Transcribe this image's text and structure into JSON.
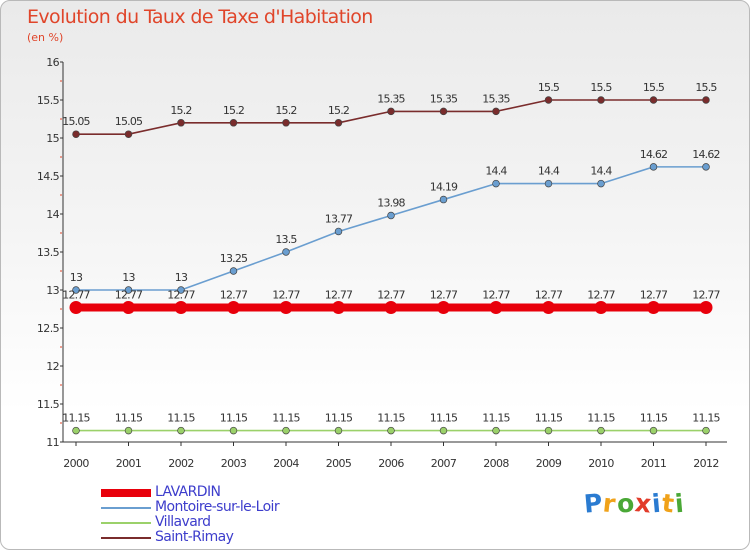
{
  "title": "Evolution du Taux de Taxe d'Habitation",
  "unit_label": "(en %)",
  "brand_logo": "Proxiti",
  "chart_data": {
    "type": "line",
    "title": "Evolution du Taux de Taxe d'Habitation",
    "ylabel": "(en %)",
    "xlabel": "",
    "x": [
      "2000",
      "2001",
      "2002",
      "2003",
      "2004",
      "2005",
      "2006",
      "2007",
      "2008",
      "2009",
      "2010",
      "2011",
      "2012"
    ],
    "ylim": [
      11,
      16
    ],
    "yticks": [
      "11",
      "11.5",
      "12",
      "12.5",
      "13",
      "13.5",
      "14",
      "14.5",
      "15",
      "15.5",
      "16"
    ],
    "grid": false,
    "legend_position": "bottom-left",
    "series": [
      {
        "name": "LAVARDIN",
        "color": "#e8000b",
        "values": [
          12.77,
          12.77,
          12.77,
          12.77,
          12.77,
          12.77,
          12.77,
          12.77,
          12.77,
          12.77,
          12.77,
          12.77,
          12.77
        ],
        "labels": [
          "12.77",
          "12.77",
          "12.77",
          "12.77",
          "12.77",
          "12.77",
          "12.77",
          "12.77",
          "12.77",
          "12.77",
          "12.77",
          "12.77",
          "12.77"
        ]
      },
      {
        "name": "Montoire-sur-le-Loir",
        "color": "#6a9ed0",
        "values": [
          13,
          13,
          13,
          13.25,
          13.5,
          13.77,
          13.98,
          14.19,
          14.4,
          14.4,
          14.4,
          14.62,
          14.62
        ],
        "labels": [
          "13",
          "13",
          "13",
          "13.25",
          "13.5",
          "13.77",
          "13.98",
          "14.19",
          "14.4",
          "14.4",
          "14.4",
          "14.62",
          "14.62"
        ]
      },
      {
        "name": "Villavard",
        "color": "#9bd16a",
        "values": [
          11.15,
          11.15,
          11.15,
          11.15,
          11.15,
          11.15,
          11.15,
          11.15,
          11.15,
          11.15,
          11.15,
          11.15,
          11.15
        ],
        "labels": [
          "11.15",
          "11.15",
          "11.15",
          "11.15",
          "11.15",
          "11.15",
          "11.15",
          "11.15",
          "11.15",
          "11.15",
          "11.15",
          "11.15",
          "11.15"
        ]
      },
      {
        "name": "Saint-Rimay",
        "color": "#7a2c2c",
        "values": [
          15.05,
          15.05,
          15.2,
          15.2,
          15.2,
          15.2,
          15.35,
          15.35,
          15.35,
          15.5,
          15.5,
          15.5,
          15.5
        ],
        "labels": [
          "15.05",
          "15.05",
          "15.2",
          "15.2",
          "15.2",
          "15.2",
          "15.35",
          "15.35",
          "15.35",
          "15.5",
          "15.5",
          "15.5",
          "15.5"
        ]
      }
    ]
  }
}
